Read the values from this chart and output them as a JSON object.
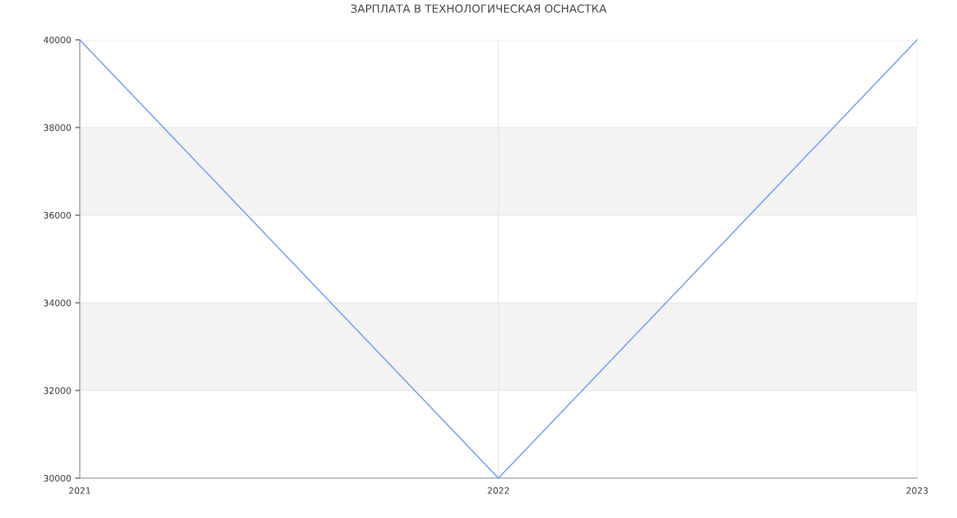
{
  "chart_data": {
    "type": "line",
    "title": "ЗАРПЛАТА В ТЕХНОЛОГИЧЕСКАЯ ОСНАСТКА",
    "x": [
      2021,
      2022,
      2023
    ],
    "series": [
      {
        "color": "#6395f9",
        "values": [
          40000,
          30000,
          40000
        ]
      }
    ],
    "xlim": [
      2021,
      2023
    ],
    "xticks": [
      2021,
      2022,
      2023
    ],
    "ylim": [
      30000,
      40000
    ],
    "yticks": [
      30000,
      32000,
      34000,
      36000,
      38000,
      40000
    ],
    "bands": [
      {
        "axis": "y",
        "from": 32000,
        "to": 34000,
        "color": "#f3f3f3"
      },
      {
        "axis": "y",
        "from": 36000,
        "to": 38000,
        "color": "#f3f3f3"
      }
    ],
    "grid": true,
    "marker": "none",
    "line_style": "solid"
  }
}
